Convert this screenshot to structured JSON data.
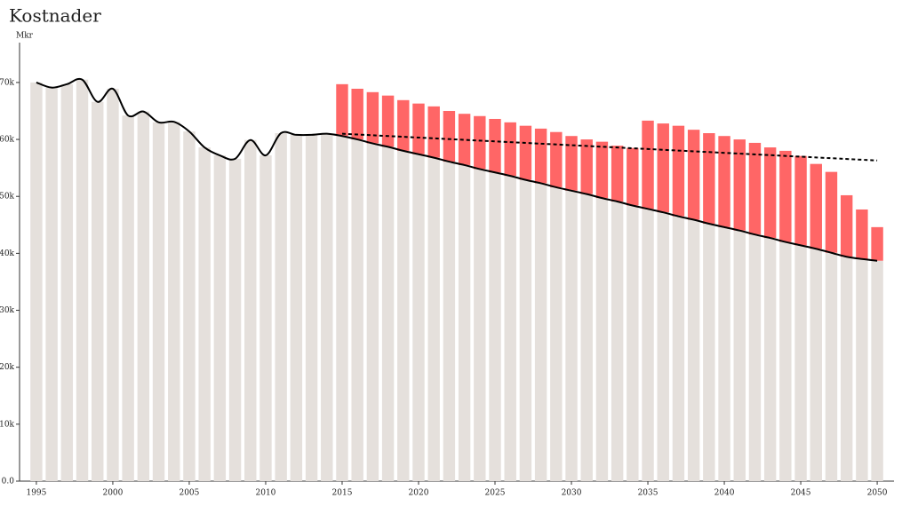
{
  "chart_data": {
    "type": "bar",
    "title": "Kostnader",
    "y_label": "Mkr",
    "x": [
      1995,
      1996,
      1997,
      1998,
      1999,
      2000,
      2001,
      2002,
      2003,
      2004,
      2005,
      2006,
      2007,
      2008,
      2009,
      2010,
      2011,
      2012,
      2013,
      2014,
      2015,
      2016,
      2017,
      2018,
      2019,
      2020,
      2021,
      2022,
      2023,
      2024,
      2025,
      2026,
      2027,
      2028,
      2029,
      2030,
      2031,
      2032,
      2033,
      2034,
      2035,
      2036,
      2037,
      2038,
      2039,
      2040,
      2041,
      2042,
      2043,
      2044,
      2045,
      2046,
      2047,
      2048,
      2049,
      2050
    ],
    "stacked": true,
    "series": [
      {
        "kind": "bar",
        "color": "#e5e0dc",
        "values": [
          70000,
          69100,
          69700,
          70500,
          66600,
          68900,
          64200,
          64900,
          63000,
          63100,
          61400,
          58600,
          57200,
          56600,
          59900,
          57200,
          61100,
          60800,
          60800,
          61000,
          60600,
          60000,
          59300,
          58700,
          58000,
          57400,
          56800,
          56100,
          55500,
          54800,
          54200,
          53600,
          52900,
          52300,
          51600,
          51000,
          50400,
          49700,
          49100,
          48400,
          47800,
          47200,
          46500,
          45900,
          45200,
          44600,
          44000,
          43300,
          42700,
          42000,
          41400,
          40800,
          40100,
          39400,
          39000,
          38700
        ]
      },
      {
        "kind": "bar",
        "color": "#ff6666",
        "values": [
          null,
          null,
          null,
          null,
          null,
          null,
          null,
          null,
          null,
          null,
          null,
          null,
          null,
          null,
          null,
          null,
          null,
          null,
          null,
          null,
          9100,
          8900,
          9000,
          9000,
          8900,
          8900,
          9000,
          8900,
          9000,
          9300,
          9400,
          9400,
          9500,
          9600,
          9700,
          9600,
          9600,
          9900,
          9800,
          10100,
          15500,
          15600,
          15900,
          15800,
          15900,
          16000,
          16000,
          16100,
          15900,
          16000,
          15700,
          14900,
          14200,
          10800,
          8700,
          5900
        ]
      },
      {
        "kind": "line",
        "color": "#000000",
        "dashed": false,
        "values": [
          70000,
          69100,
          69700,
          70500,
          66600,
          68900,
          64200,
          64900,
          63000,
          63100,
          61400,
          58600,
          57200,
          56600,
          59900,
          57200,
          61100,
          60800,
          60800,
          61000,
          60600,
          60000,
          59300,
          58700,
          58000,
          57400,
          56800,
          56100,
          55500,
          54800,
          54200,
          53600,
          52900,
          52300,
          51600,
          51000,
          50400,
          49700,
          49100,
          48400,
          47800,
          47200,
          46500,
          45900,
          45200,
          44600,
          44000,
          43300,
          42700,
          42000,
          41400,
          40800,
          40100,
          39400,
          39000,
          38700
        ]
      },
      {
        "kind": "line",
        "color": "#000000",
        "dashed": true,
        "x": [
          2015,
          2050
        ],
        "values": [
          61000,
          56300
        ]
      }
    ],
    "xlim": [
      1993.9,
      2051.1
    ],
    "xticks": [
      1995,
      2000,
      2005,
      2010,
      2015,
      2020,
      2025,
      2030,
      2035,
      2040,
      2045,
      2050
    ],
    "ylim": [
      0,
      77000
    ],
    "yticks": [
      {
        "value": 0,
        "label": "0.0"
      },
      {
        "value": 10000,
        "label": "10k"
      },
      {
        "value": 20000,
        "label": "20k"
      },
      {
        "value": 30000,
        "label": "30k"
      },
      {
        "value": 40000,
        "label": "40k"
      },
      {
        "value": 50000,
        "label": "50k"
      },
      {
        "value": 60000,
        "label": "60k"
      },
      {
        "value": 70000,
        "label": "70k"
      }
    ]
  }
}
